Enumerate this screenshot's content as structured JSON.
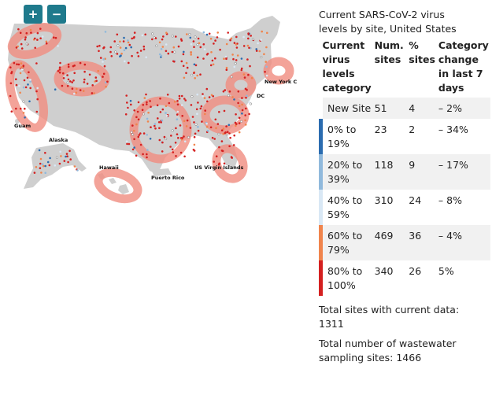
{
  "map": {
    "controls": {
      "zoom_in": "+",
      "zoom_out": "−"
    },
    "labels": {
      "guam": "Guam",
      "alaska": "Alaska",
      "hawaii": "Hawaii",
      "puerto_rico": "Puerto Rico",
      "us_virgin_islands": "US Virgin Islands",
      "dc": "DC",
      "new_york_city": "New York C"
    },
    "colors": {
      "land": "#cfcfcf",
      "highlight": "#f08c80",
      "new_site": "#ffffff",
      "level_0_19": "#2b6cb0",
      "level_20_39": "#90b9dc",
      "level_40_59": "#d9e8f5",
      "level_60_79": "#f0844c",
      "level_80_100": "#d42020"
    }
  },
  "legend": {
    "title": "Current SARS-CoV-2 virus levels by site, United States",
    "headers": {
      "category": "Current virus levels category",
      "num_sites": "Num. sites",
      "pct_sites": "% sites",
      "change": "Category change in last 7 days"
    },
    "rows": [
      {
        "category": "New Site",
        "num_sites": "51",
        "pct_sites": "4",
        "change": "– 2%",
        "color": "#ffffff"
      },
      {
        "category": "0% to 19%",
        "num_sites": "23",
        "pct_sites": "2",
        "change": "– 34%",
        "color": "#2b6cb0"
      },
      {
        "category": "20% to 39%",
        "num_sites": "118",
        "pct_sites": "9",
        "change": "– 17%",
        "color": "#90b9dc"
      },
      {
        "category": "40% to 59%",
        "num_sites": "310",
        "pct_sites": "24",
        "change": "– 8%",
        "color": "#d9e8f5"
      },
      {
        "category": "60% to 79%",
        "num_sites": "469",
        "pct_sites": "36",
        "change": "– 4%",
        "color": "#f0844c"
      },
      {
        "category": "80% to 100%",
        "num_sites": "340",
        "pct_sites": "26",
        "change": "5%",
        "color": "#d42020"
      }
    ],
    "total_current": "Total sites with current data: 1311",
    "total_sampling": "Total number of wastewater sampling sites: 1466"
  }
}
